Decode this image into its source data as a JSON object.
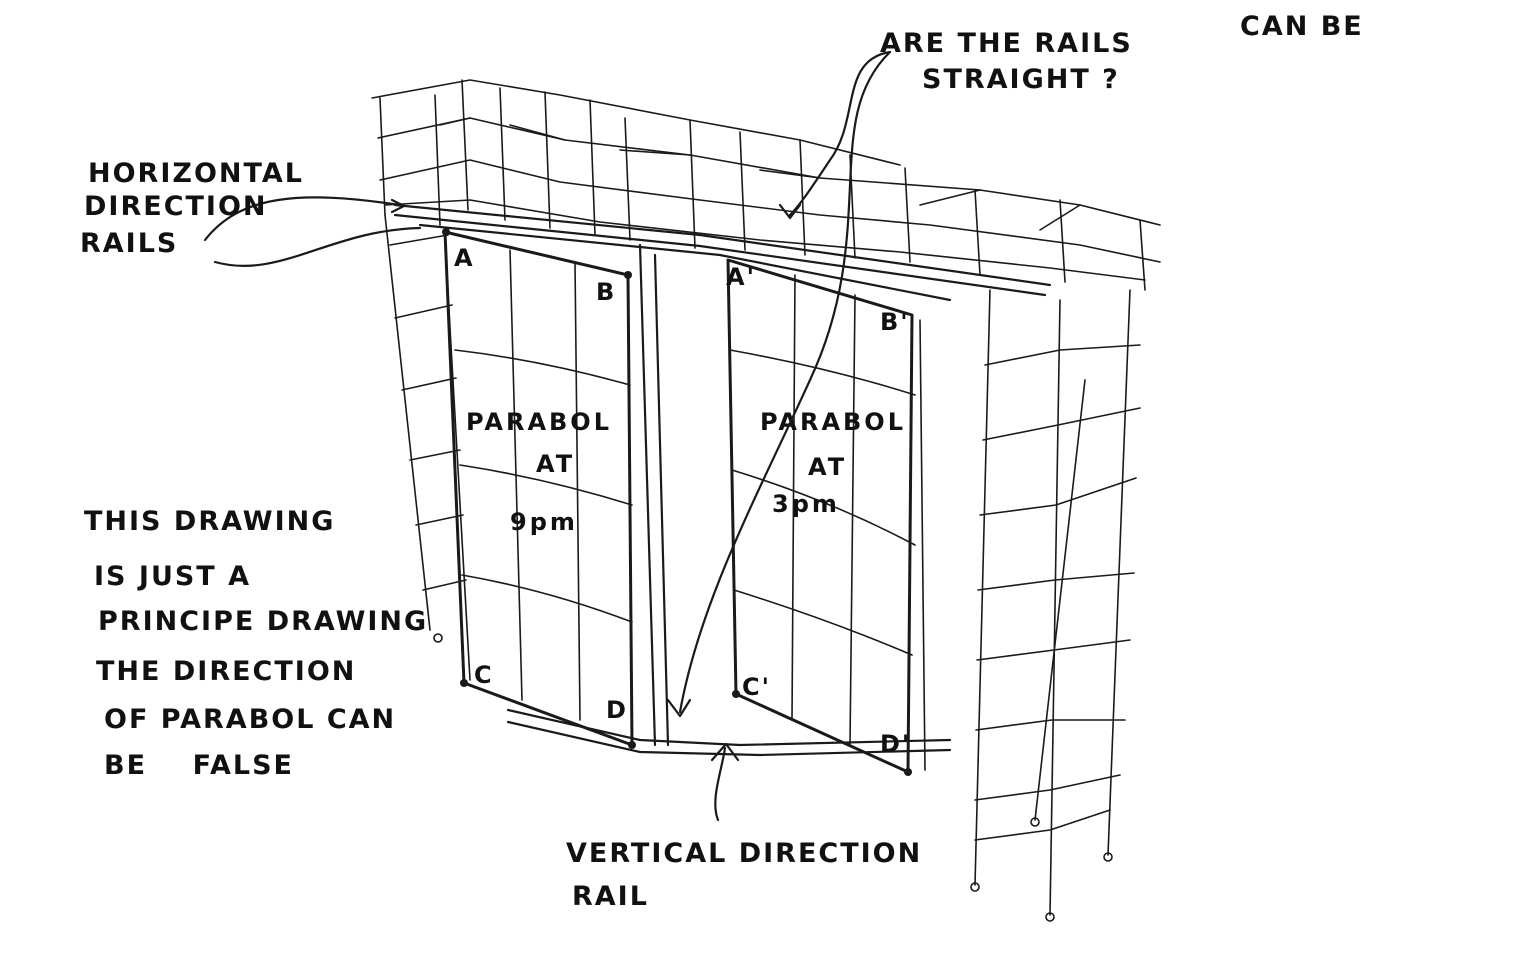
{
  "notes": {
    "rails_question": [
      "ARE THE RAILS",
      "CAN BE",
      "STRAIGHT ?"
    ],
    "horizontal_rails": [
      "HORIZONTAL",
      "DIRECTION",
      "RAILS"
    ],
    "principle": [
      "THIS DRAWING",
      "IS JUST A",
      "PRINCIPE DRAWING",
      "THE DIRECTION",
      "OF PARABOL CAN",
      "BE    FALSE"
    ],
    "vertical_rail": [
      "VERTICAL DIRECTION",
      "RAIL"
    ]
  },
  "panels": {
    "left": {
      "lines": [
        "PARABOL",
        "AT",
        "9pm"
      ]
    },
    "right": {
      "lines": [
        "PARABOL",
        "AT",
        "3pm"
      ]
    }
  },
  "corner_labels": {
    "a": "A",
    "b": "B",
    "c": "C",
    "d": "D",
    "a_prime": "A'",
    "b_prime": "B'",
    "c_prime": "C'",
    "d_prime": "D'"
  },
  "colors": {
    "ink": "#1a1a1a",
    "paper": "#ffffff"
  }
}
